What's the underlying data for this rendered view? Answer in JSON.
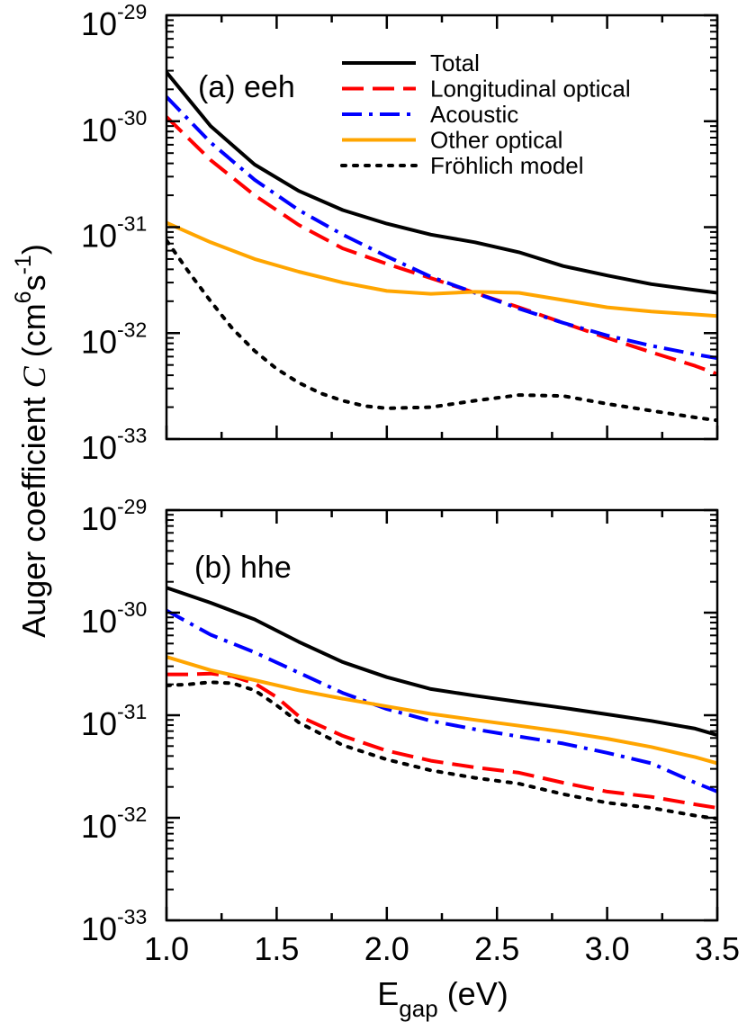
{
  "chart_data": [
    {
      "type": "line",
      "panel_label": "(a) eeh",
      "y_scale": "log",
      "ylim": [
        1e-33,
        1e-29
      ],
      "xlim": [
        1.0,
        3.5
      ],
      "legend_placement": "top-right",
      "series": [
        {
          "name": "Total",
          "color": "#000000",
          "style": "solid",
          "x": [
            1.0,
            1.2,
            1.4,
            1.6,
            1.8,
            2.0,
            2.2,
            2.4,
            2.6,
            2.8,
            3.0,
            3.2,
            3.4,
            3.5
          ],
          "y": [
            2.9e-30,
            9e-31,
            3.9e-31,
            2.2e-31,
            1.45e-31,
            1.08e-31,
            8.5e-32,
            7.2e-32,
            5.8e-32,
            4.3e-32,
            3.5e-32,
            2.9e-32,
            2.55e-32,
            2.4e-32
          ]
        },
        {
          "name": "Longitudinal optical",
          "color": "#ff0000",
          "style": "dashed",
          "x": [
            1.0,
            1.2,
            1.4,
            1.6,
            1.8,
            2.0,
            2.2,
            2.4,
            2.6,
            2.8,
            3.0,
            3.2,
            3.4,
            3.5
          ],
          "y": [
            1.1e-30,
            4.3e-31,
            2e-31,
            1.05e-31,
            6.3e-32,
            4.5e-32,
            3.3e-32,
            2.4e-32,
            1.75e-32,
            1.25e-32,
            9e-33,
            6.6e-33,
            4.9e-33,
            4.1e-33
          ]
        },
        {
          "name": "Acoustic",
          "color": "#0000ff",
          "style": "dashdot",
          "x": [
            1.0,
            1.2,
            1.4,
            1.6,
            1.8,
            2.0,
            2.2,
            2.4,
            2.6,
            2.8,
            3.0,
            3.2,
            3.4,
            3.5
          ],
          "y": [
            1.7e-30,
            6.3e-31,
            2.8e-31,
            1.45e-31,
            8.5e-32,
            5.3e-32,
            3.4e-32,
            2.4e-32,
            1.7e-32,
            1.25e-32,
            9.5e-33,
            7.6e-33,
            6.3e-33,
            5.8e-33
          ]
        },
        {
          "name": "Other optical",
          "color": "#ffa500",
          "style": "solid",
          "x": [
            1.0,
            1.2,
            1.4,
            1.6,
            1.8,
            2.0,
            2.2,
            2.4,
            2.6,
            2.8,
            3.0,
            3.2,
            3.4,
            3.5
          ],
          "y": [
            1.1e-31,
            7.2e-32,
            5e-32,
            3.8e-32,
            3e-32,
            2.5e-32,
            2.35e-32,
            2.45e-32,
            2.4e-32,
            2.05e-32,
            1.75e-32,
            1.6e-32,
            1.5e-32,
            1.45e-32
          ]
        },
        {
          "name": "Fröhlich model",
          "color": "#000000",
          "style": "dotted",
          "x": [
            1.0,
            1.1,
            1.2,
            1.3,
            1.4,
            1.5,
            1.6,
            1.7,
            1.8,
            1.9,
            2.0,
            2.2,
            2.4,
            2.6,
            2.8,
            3.0,
            3.2,
            3.4,
            3.5
          ],
          "y": [
            7.5e-32,
            3.8e-32,
            2e-32,
            1.1e-32,
            6.8e-33,
            4.6e-33,
            3.4e-33,
            2.7e-33,
            2.3e-33,
            2.05e-33,
            1.95e-33,
            2e-33,
            2.3e-33,
            2.6e-33,
            2.55e-33,
            2.15e-33,
            1.85e-33,
            1.6e-33,
            1.5e-33
          ]
        }
      ]
    },
    {
      "type": "line",
      "panel_label": "(b) hhe",
      "y_scale": "log",
      "ylim": [
        1e-33,
        1e-29
      ],
      "xlim": [
        1.0,
        3.5
      ],
      "series": [
        {
          "name": "Total",
          "color": "#000000",
          "style": "solid",
          "x": [
            1.0,
            1.2,
            1.4,
            1.6,
            1.8,
            2.0,
            2.2,
            2.4,
            2.6,
            2.8,
            3.0,
            3.2,
            3.4,
            3.5
          ],
          "y": [
            1.75e-30,
            1.25e-30,
            8.6e-31,
            5.2e-31,
            3.3e-31,
            2.35e-31,
            1.8e-31,
            1.55e-31,
            1.35e-31,
            1.18e-31,
            1.02e-31,
            8.8e-32,
            7.4e-32,
            6.4e-32
          ]
        },
        {
          "name": "Longitudinal optical",
          "color": "#ff0000",
          "style": "dashed",
          "x": [
            1.0,
            1.1,
            1.2,
            1.3,
            1.4,
            1.5,
            1.6,
            1.8,
            2.0,
            2.2,
            2.4,
            2.6,
            2.8,
            3.0,
            3.2,
            3.4,
            3.5
          ],
          "y": [
            2.5e-31,
            2.5e-31,
            2.55e-31,
            2.4e-31,
            2.05e-31,
            1.5e-31,
            9.8e-32,
            6.3e-32,
            4.5e-32,
            3.6e-32,
            3.1e-32,
            2.75e-32,
            2.2e-32,
            1.8e-32,
            1.6e-32,
            1.35e-32,
            1.25e-32
          ]
        },
        {
          "name": "Acoustic",
          "color": "#0000ff",
          "style": "dashdot",
          "x": [
            1.0,
            1.2,
            1.4,
            1.6,
            1.8,
            2.0,
            2.2,
            2.4,
            2.6,
            2.8,
            3.0,
            3.2,
            3.4,
            3.5
          ],
          "y": [
            1.05e-30,
            6.1e-31,
            4.1e-31,
            2.6e-31,
            1.65e-31,
            1.15e-31,
            8.8e-32,
            7.3e-32,
            6.2e-32,
            5.3e-32,
            4.3e-32,
            3.4e-32,
            2.2e-32,
            1.8e-32
          ]
        },
        {
          "name": "Other optical",
          "color": "#ffa500",
          "style": "solid",
          "x": [
            1.0,
            1.2,
            1.4,
            1.6,
            1.8,
            2.0,
            2.2,
            2.4,
            2.6,
            2.8,
            3.0,
            3.2,
            3.4,
            3.5
          ],
          "y": [
            3.7e-31,
            2.75e-31,
            2.2e-31,
            1.75e-31,
            1.45e-31,
            1.22e-31,
            1.03e-31,
            9e-32,
            7.9e-32,
            6.9e-32,
            5.9e-32,
            4.9e-32,
            3.9e-32,
            3.4e-32
          ]
        },
        {
          "name": "Fröhlich model",
          "color": "#000000",
          "style": "dotted",
          "x": [
            1.0,
            1.1,
            1.2,
            1.3,
            1.4,
            1.5,
            1.6,
            1.8,
            2.0,
            2.2,
            2.4,
            2.6,
            2.8,
            3.0,
            3.2,
            3.4,
            3.5
          ],
          "y": [
            1.95e-31,
            2e-31,
            2.1e-31,
            2.05e-31,
            1.75e-31,
            1.25e-31,
            8.5e-32,
            5.1e-32,
            3.7e-32,
            2.9e-32,
            2.45e-32,
            2.15e-32,
            1.7e-32,
            1.4e-32,
            1.25e-32,
            1.05e-32,
            9.8e-33
          ]
        }
      ]
    }
  ],
  "x_ticks": [
    "1.0",
    "1.5",
    "2.0",
    "2.5",
    "3.0",
    "3.5"
  ],
  "y_tick_labels": {
    "base": "10",
    "exponents": [
      "-33",
      "-32",
      "-31",
      "-30",
      "-29"
    ]
  },
  "axis_labels": {
    "x_main": "E",
    "x_sub": "gap",
    "x_unit": " (eV)",
    "y_prefix": "Auger coefficient ",
    "y_symbol": "C",
    "y_unit_open": " (cm",
    "y_unit_exp1": "6",
    "y_unit_mid": "s",
    "y_unit_exp2": "-1",
    "y_unit_close": ")"
  },
  "legend": [
    "Total",
    "Longitudinal optical",
    "Acoustic",
    "Other optical",
    "Fröhlich model"
  ]
}
